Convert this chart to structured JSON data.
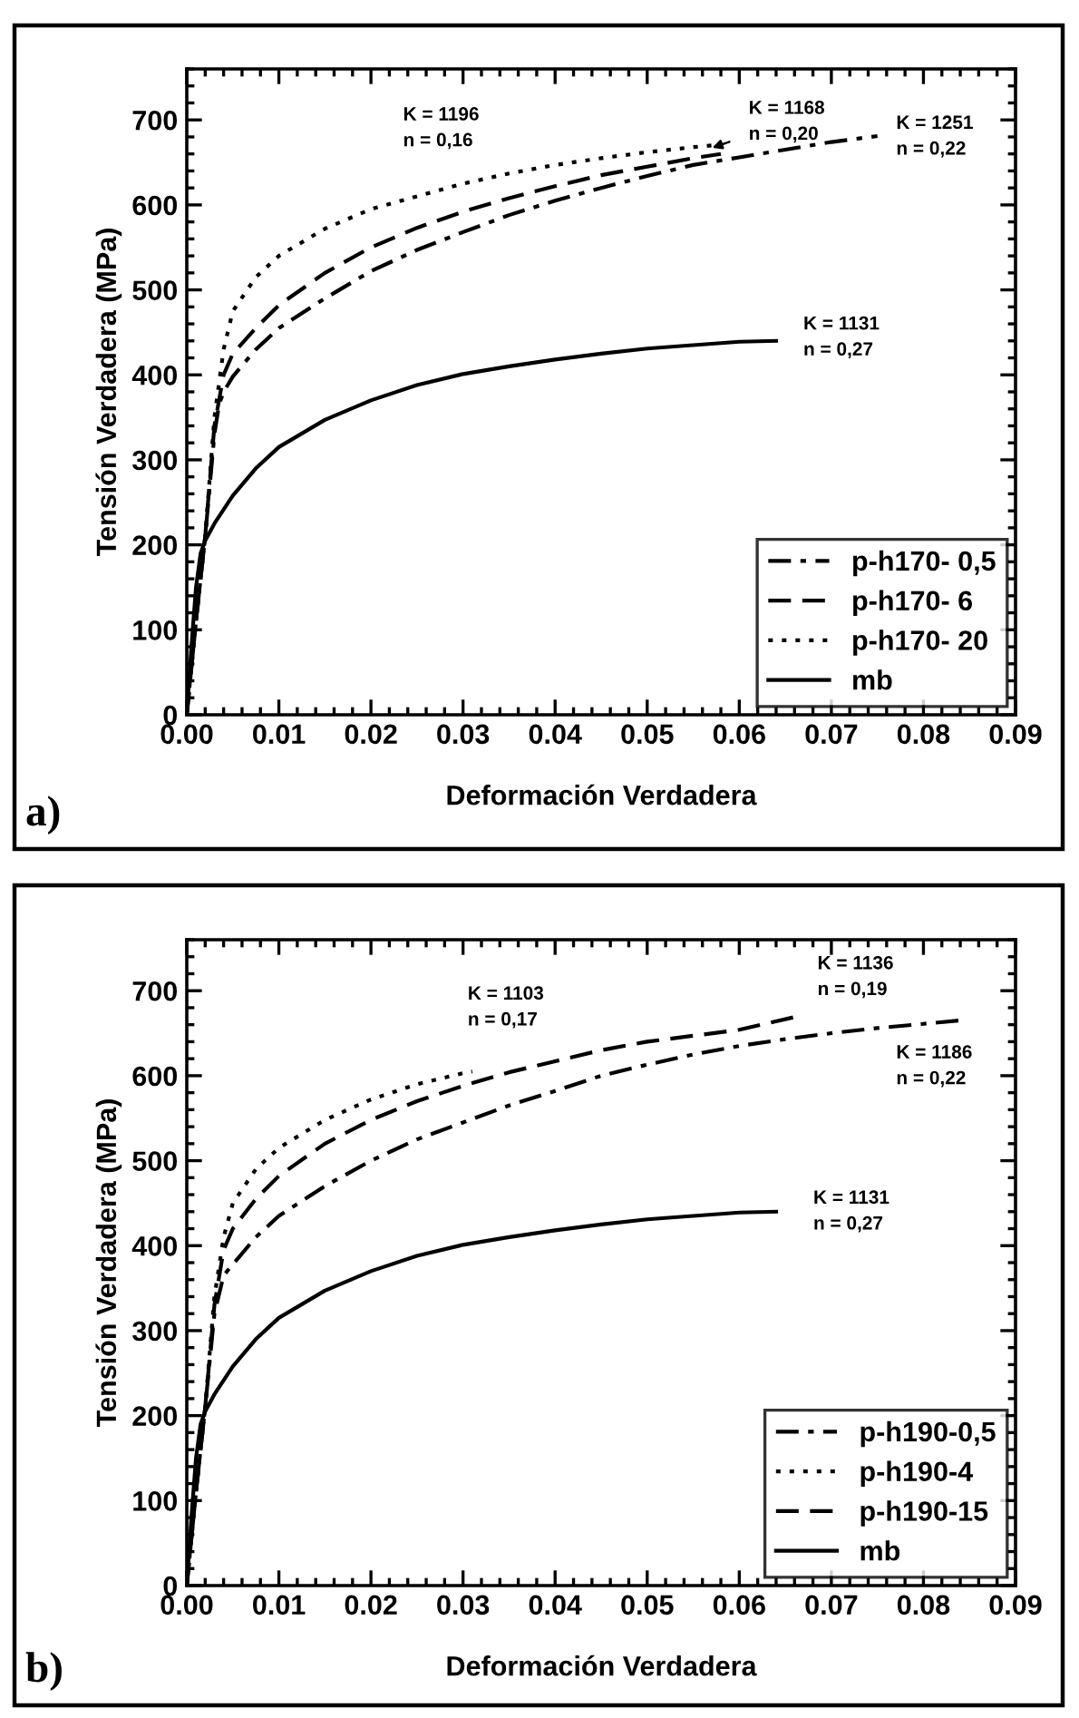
{
  "chart_data": [
    {
      "type": "line",
      "xlabel": "Deformación Verdadera",
      "ylabel": "Tensión Verdadera (MPa)",
      "xlim": [
        0,
        0.09
      ],
      "ylim": [
        0,
        760
      ],
      "xticks": [
        {
          "value": 0,
          "label": "0.00"
        },
        {
          "value": 0.01,
          "label": "0.01"
        },
        {
          "value": 0.02,
          "label": "0.02"
        },
        {
          "value": 0.03,
          "label": "0.03"
        },
        {
          "value": 0.04,
          "label": "0.04"
        },
        {
          "value": 0.05,
          "label": "0.05"
        },
        {
          "value": 0.06,
          "label": "0.06"
        },
        {
          "value": 0.07,
          "label": "0.07"
        },
        {
          "value": 0.08,
          "label": "0.08"
        },
        {
          "value": 0.09,
          "label": "0.09"
        }
      ],
      "yticks": [
        0,
        100,
        200,
        300,
        400,
        500,
        600,
        700
      ],
      "grid": false,
      "legend": "bottom right",
      "marker": "none",
      "series": [
        {
          "name": "p-h170- 0,5",
          "color": "#000000",
          "line_style": "dashdot",
          "x": [
            0,
            0.001,
            0.002,
            0.003,
            0.0035,
            0.004,
            0.005,
            0.0075,
            0.01,
            0.015,
            0.02,
            0.025,
            0.03,
            0.035,
            0.04,
            0.045,
            0.05,
            0.055,
            0.06,
            0.065,
            0.07,
            0.075
          ],
          "values": [
            0,
            110,
            210,
            330,
            365,
            380,
            398,
            430,
            455,
            490,
            522,
            547,
            568,
            588,
            605,
            620,
            634,
            647,
            656,
            665,
            674,
            681
          ]
        },
        {
          "name": "p-h170- 6",
          "color": "#000000",
          "line_style": "dashed",
          "x": [
            0,
            0.001,
            0.002,
            0.003,
            0.004,
            0.005,
            0.0075,
            0.01,
            0.015,
            0.02,
            0.025,
            0.03,
            0.035,
            0.04,
            0.045,
            0.05,
            0.055,
            0.058
          ],
          "values": [
            0,
            110,
            210,
            340,
            400,
            425,
            455,
            482,
            520,
            550,
            573,
            592,
            608,
            622,
            635,
            645,
            655,
            660
          ]
        },
        {
          "name": "p-h170- 20",
          "color": "#000000",
          "line_style": "dotted",
          "x": [
            0,
            0.001,
            0.002,
            0.003,
            0.004,
            0.005,
            0.0075,
            0.01,
            0.015,
            0.02,
            0.025,
            0.03,
            0.035,
            0.04,
            0.045,
            0.05,
            0.055,
            0.057
          ],
          "values": [
            0,
            110,
            210,
            350,
            430,
            475,
            515,
            540,
            572,
            595,
            610,
            625,
            637,
            647,
            655,
            662,
            668,
            670
          ]
        },
        {
          "name": "mb",
          "color": "#000000",
          "line_style": "solid",
          "x": [
            0,
            0.0005,
            0.001,
            0.0015,
            0.002,
            0.003,
            0.005,
            0.0075,
            0.01,
            0.015,
            0.02,
            0.025,
            0.03,
            0.035,
            0.04,
            0.045,
            0.05,
            0.055,
            0.06,
            0.064
          ],
          "values": [
            0,
            80,
            150,
            190,
            205,
            225,
            258,
            290,
            315,
            347,
            370,
            388,
            401,
            410,
            418,
            425,
            431,
            435,
            439,
            440
          ]
        }
      ],
      "annotations": [
        "K = 1196\nn = 0,16",
        "K = 1168\nn = 0,20",
        "K = 1251\nn = 0,22",
        "K = 1131\nn = 0,27",
        "a)"
      ]
    },
    {
      "type": "line",
      "xlabel": "Deformación Verdadera",
      "ylabel": "Tensión Verdadera (MPa)",
      "xlim": [
        0,
        0.09
      ],
      "ylim": [
        0,
        760
      ],
      "xticks": [
        {
          "value": 0,
          "label": "0.00"
        },
        {
          "value": 0.01,
          "label": "0.01"
        },
        {
          "value": 0.02,
          "label": "0.02"
        },
        {
          "value": 0.03,
          "label": "0.03"
        },
        {
          "value": 0.04,
          "label": "0.04"
        },
        {
          "value": 0.05,
          "label": "0.05"
        },
        {
          "value": 0.06,
          "label": "0.06"
        },
        {
          "value": 0.07,
          "label": "0.07"
        },
        {
          "value": 0.08,
          "label": "0.08"
        },
        {
          "value": 0.09,
          "label": "0.09"
        }
      ],
      "yticks": [
        0,
        100,
        200,
        300,
        400,
        500,
        600,
        700
      ],
      "grid": false,
      "legend": "bottom right",
      "marker": "none",
      "series": [
        {
          "name": "p-h190-0,5",
          "color": "#000000",
          "line_style": "dashdot",
          "x": [
            0,
            0.001,
            0.002,
            0.003,
            0.004,
            0.005,
            0.0075,
            0.01,
            0.015,
            0.02,
            0.025,
            0.03,
            0.035,
            0.04,
            0.045,
            0.05,
            0.055,
            0.06,
            0.065,
            0.07,
            0.075,
            0.08,
            0.084
          ],
          "values": [
            0,
            110,
            210,
            320,
            365,
            378,
            410,
            435,
            470,
            500,
            525,
            545,
            565,
            582,
            600,
            613,
            625,
            635,
            643,
            650,
            656,
            661,
            665
          ]
        },
        {
          "name": "p-h190-4",
          "color": "#000000",
          "line_style": "dotted",
          "x": [
            0,
            0.001,
            0.002,
            0.003,
            0.004,
            0.005,
            0.0075,
            0.01,
            0.015,
            0.02,
            0.025,
            0.03,
            0.031
          ],
          "values": [
            0,
            110,
            210,
            340,
            410,
            450,
            490,
            515,
            548,
            572,
            590,
            603,
            605
          ]
        },
        {
          "name": "p-h190-15",
          "color": "#000000",
          "line_style": "dashed",
          "x": [
            0,
            0.001,
            0.002,
            0.003,
            0.004,
            0.005,
            0.0075,
            0.01,
            0.015,
            0.02,
            0.025,
            0.03,
            0.035,
            0.04,
            0.045,
            0.05,
            0.055,
            0.06,
            0.066
          ],
          "values": [
            0,
            110,
            210,
            330,
            395,
            420,
            455,
            482,
            520,
            548,
            570,
            588,
            604,
            617,
            630,
            640,
            647,
            654,
            669
          ]
        },
        {
          "name": "mb",
          "color": "#000000",
          "line_style": "solid",
          "x": [
            0,
            0.0005,
            0.001,
            0.0015,
            0.002,
            0.003,
            0.005,
            0.0075,
            0.01,
            0.015,
            0.02,
            0.025,
            0.03,
            0.035,
            0.04,
            0.045,
            0.05,
            0.055,
            0.06,
            0.064
          ],
          "values": [
            0,
            80,
            150,
            190,
            205,
            225,
            258,
            290,
            315,
            347,
            370,
            388,
            401,
            410,
            418,
            425,
            431,
            435,
            439,
            440
          ]
        }
      ],
      "annotations": [
        "K = 1103\nn = 0,17",
        "K = 1136\nn = 0,19",
        "K = 1186\nn = 0,22",
        "K = 1131\nn = 0,27",
        "b)"
      ]
    }
  ]
}
